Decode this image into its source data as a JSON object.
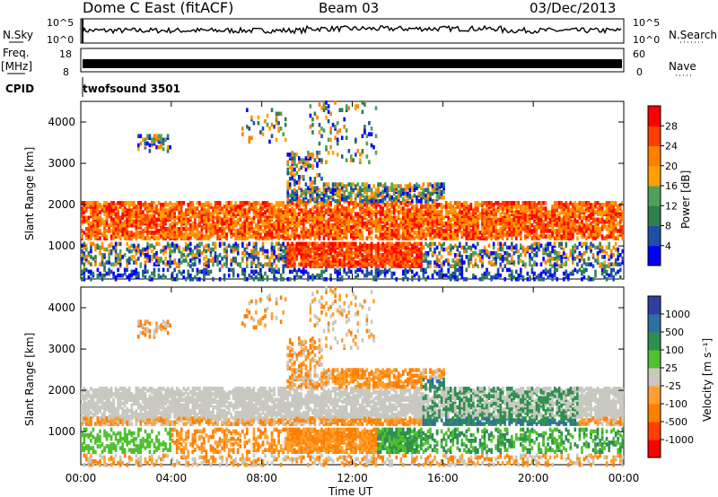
{
  "header": {
    "title": "Dome C East (fitACF)",
    "beam": "Beam 03",
    "date": "03/Dec/2013"
  },
  "sky_panel": {
    "left_label": "N.Sky",
    "right_label": "N.Search",
    "ticks_left": [
      "10^5",
      "10^0"
    ],
    "ticks_right": [
      "10^5",
      "10^0"
    ]
  },
  "freq_panel": {
    "left_label": "Freq.",
    "left_unit": "[MHz]",
    "right_label": "Nave",
    "ticks_left": [
      "18",
      "8"
    ],
    "ticks_right": [
      "60",
      "0"
    ]
  },
  "cpid": {
    "label": "CPID",
    "value": "twofsound 3501"
  },
  "colors": {
    "power_scale": [
      "#0000ff",
      "#1f4fa8",
      "#2f7f4f",
      "#4fa05a",
      "#ff9f00",
      "#ff7f00",
      "#ff3f00",
      "#ff0000"
    ],
    "velocity_scale": [
      "#2f3fa0",
      "#2f6f9f",
      "#2f8f4f",
      "#4fc02f",
      "#c8c8c0",
      "#ff9f2f",
      "#ff7f00",
      "#ff3f00",
      "#ff0000"
    ]
  },
  "chart_data": [
    {
      "type": "heatmap",
      "name": "power",
      "ylabel": "Slant Range [km]",
      "yticks": [
        "1000",
        "2000",
        "3000",
        "4000"
      ],
      "ylim": [
        200,
        4500
      ],
      "xlim": [
        "00:00",
        "24:00"
      ],
      "colorbar": {
        "label": "Power [dB]",
        "ticks": [
          "4",
          "8",
          "12",
          "16",
          "20",
          "24",
          "28"
        ]
      },
      "features": [
        {
          "x": [
            0,
            24
          ],
          "y": [
            1200,
            2000
          ],
          "level": "high"
        },
        {
          "x": [
            9,
            16
          ],
          "y": [
            1500,
            2400
          ],
          "level": "mid"
        },
        {
          "x": [
            10,
            14
          ],
          "y": [
            500,
            1000
          ],
          "level": "high"
        },
        {
          "x": [
            2.5,
            4
          ],
          "y": [
            3300,
            3600
          ],
          "level": "low"
        },
        {
          "x": [
            9,
            10.5
          ],
          "y": [
            2400,
            3200
          ],
          "level": "mid"
        }
      ]
    },
    {
      "type": "heatmap",
      "name": "velocity",
      "ylabel": "Slant Range [km]",
      "yticks": [
        "1000",
        "2000",
        "3000",
        "4000"
      ],
      "ylim": [
        200,
        4500
      ],
      "xlim": [
        "00:00",
        "24:00"
      ],
      "xticks": [
        "00:00",
        "04:00",
        "08:00",
        "12:00",
        "16:00",
        "20:00",
        "00:00"
      ],
      "xlabel": "Time UT",
      "colorbar": {
        "label": "Velocity [m s⁻¹]",
        "ticks": [
          "1000",
          "500",
          "100",
          "25",
          "-25",
          "-100",
          "-500",
          "-1000"
        ]
      },
      "features": [
        {
          "x": [
            0,
            24
          ],
          "y": [
            1400,
            2000
          ],
          "level": "-25..25"
        },
        {
          "x": [
            4,
            13
          ],
          "y": [
            500,
            1100
          ],
          "level": "-100..-500"
        },
        {
          "x": [
            13,
            24
          ],
          "y": [
            500,
            1500
          ],
          "level": "25..100"
        },
        {
          "x": [
            15,
            22
          ],
          "y": [
            1200,
            2200
          ],
          "level": "100..500"
        }
      ]
    }
  ]
}
